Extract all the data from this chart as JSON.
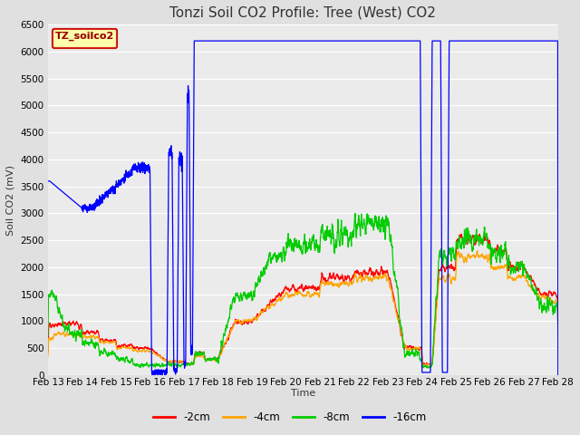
{
  "title": "Tonzi Soil CO2 Profile: Tree (West) CO2",
  "xlabel": "Time",
  "ylabel": "Soil CO2 (mV)",
  "legend_label": "TZ_soilco2",
  "series_labels": [
    "-2cm",
    "-4cm",
    "-8cm",
    "-16cm"
  ],
  "series_colors": [
    "#ff0000",
    "#ffa500",
    "#00cc00",
    "#0000ff"
  ],
  "ylim": [
    0,
    6500
  ],
  "yticks": [
    0,
    500,
    1000,
    1500,
    2000,
    2500,
    3000,
    3500,
    4000,
    4500,
    5000,
    5500,
    6000,
    6500
  ],
  "xtick_labels": [
    "Feb 13",
    "Feb 14",
    "Feb 15",
    "Feb 16",
    "Feb 17",
    "Feb 18",
    "Feb 19",
    "Feb 20",
    "Feb 21",
    "Feb 22",
    "Feb 23",
    "Feb 24",
    "Feb 25",
    "Feb 26",
    "Feb 27",
    "Feb 28"
  ],
  "bg_color": "#e0e0e0",
  "plot_bg_color": "#ebebeb",
  "grid_color": "#ffffff",
  "title_fontsize": 11,
  "label_fontsize": 8,
  "tick_fontsize": 7.5,
  "legend_facecolor": "#ffffaa",
  "legend_edgecolor": "#cc0000",
  "legend_textcolor": "#990000"
}
